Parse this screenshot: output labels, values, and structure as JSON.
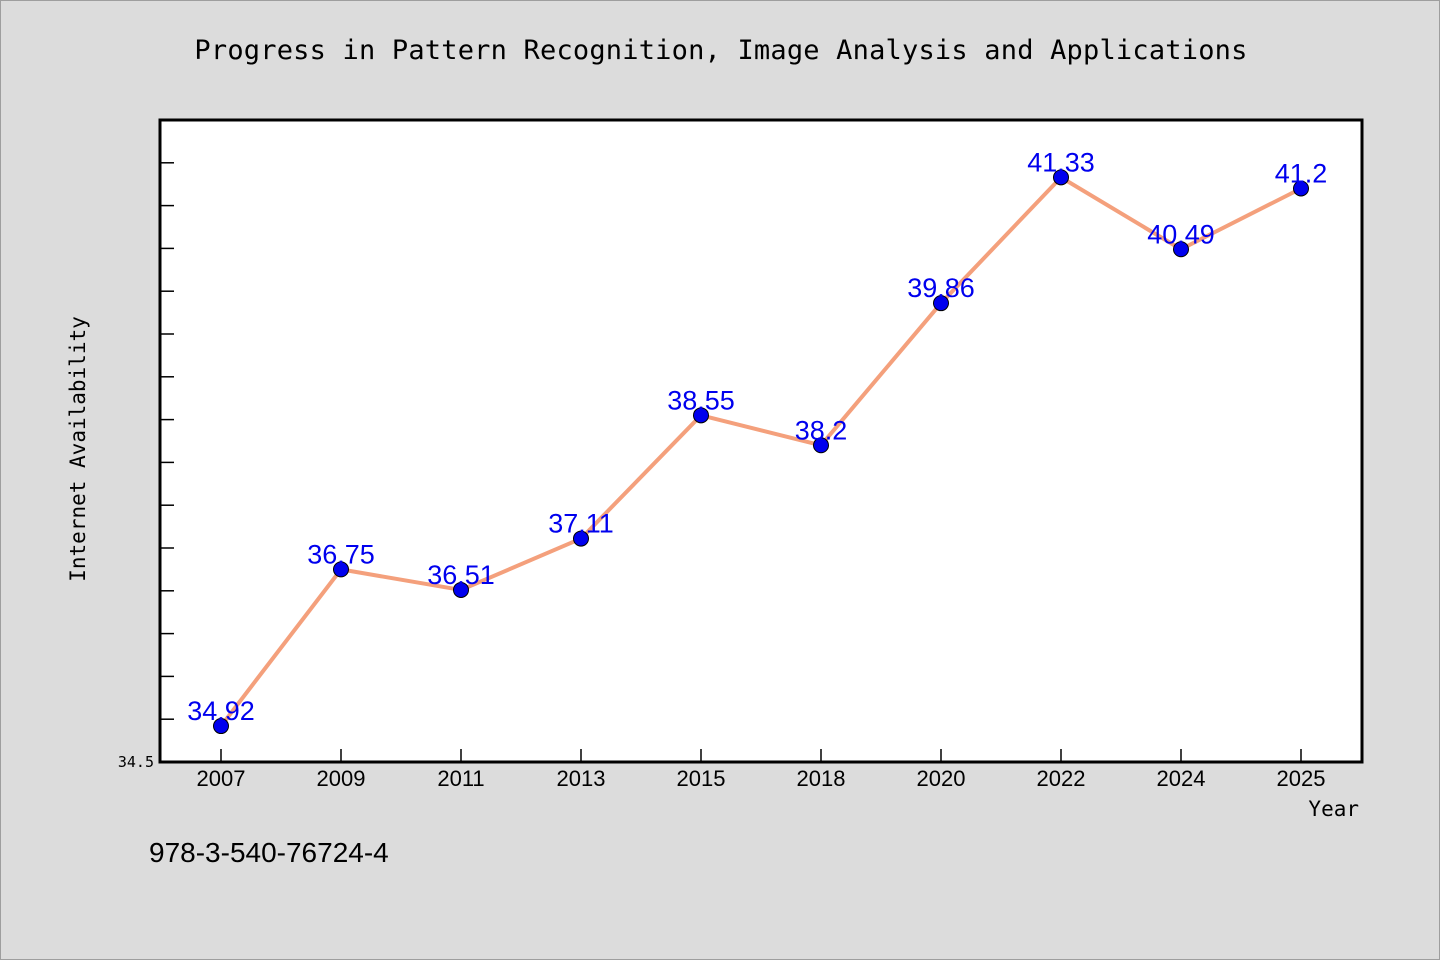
{
  "chart_data": {
    "type": "line",
    "title": "Progress in Pattern Recognition, Image Analysis and Applications",
    "xlabel": "Year",
    "ylabel": "Internet Availability",
    "categories": [
      "2007",
      "2009",
      "2011",
      "2013",
      "2015",
      "2018",
      "2020",
      "2022",
      "2024",
      "2025"
    ],
    "series": [
      {
        "values": [
          34.92,
          36.75,
          36.51,
          37.11,
          38.55,
          38.2,
          39.86,
          41.33,
          40.49,
          41.2
        ],
        "data_labels": [
          "34.92",
          "36.75",
          "36.51",
          "37.11",
          "38.55",
          "38.2",
          "39.86",
          "41.33",
          "40.49",
          "41.2"
        ],
        "line_color": "#f4a07c",
        "marker_color": "#0000ee"
      }
    ],
    "ylim": [
      34.5,
      42.0
    ],
    "ytick_labels": [
      "34.5"
    ],
    "grid": false,
    "legend": "none"
  },
  "footnote": "978-3-540-76724-4",
  "colors": {
    "background": "#dcdcdc",
    "plot_background": "#ffffff",
    "line": "#f4a07c",
    "marker": "#0000ee",
    "data_label": "#0000ee"
  }
}
